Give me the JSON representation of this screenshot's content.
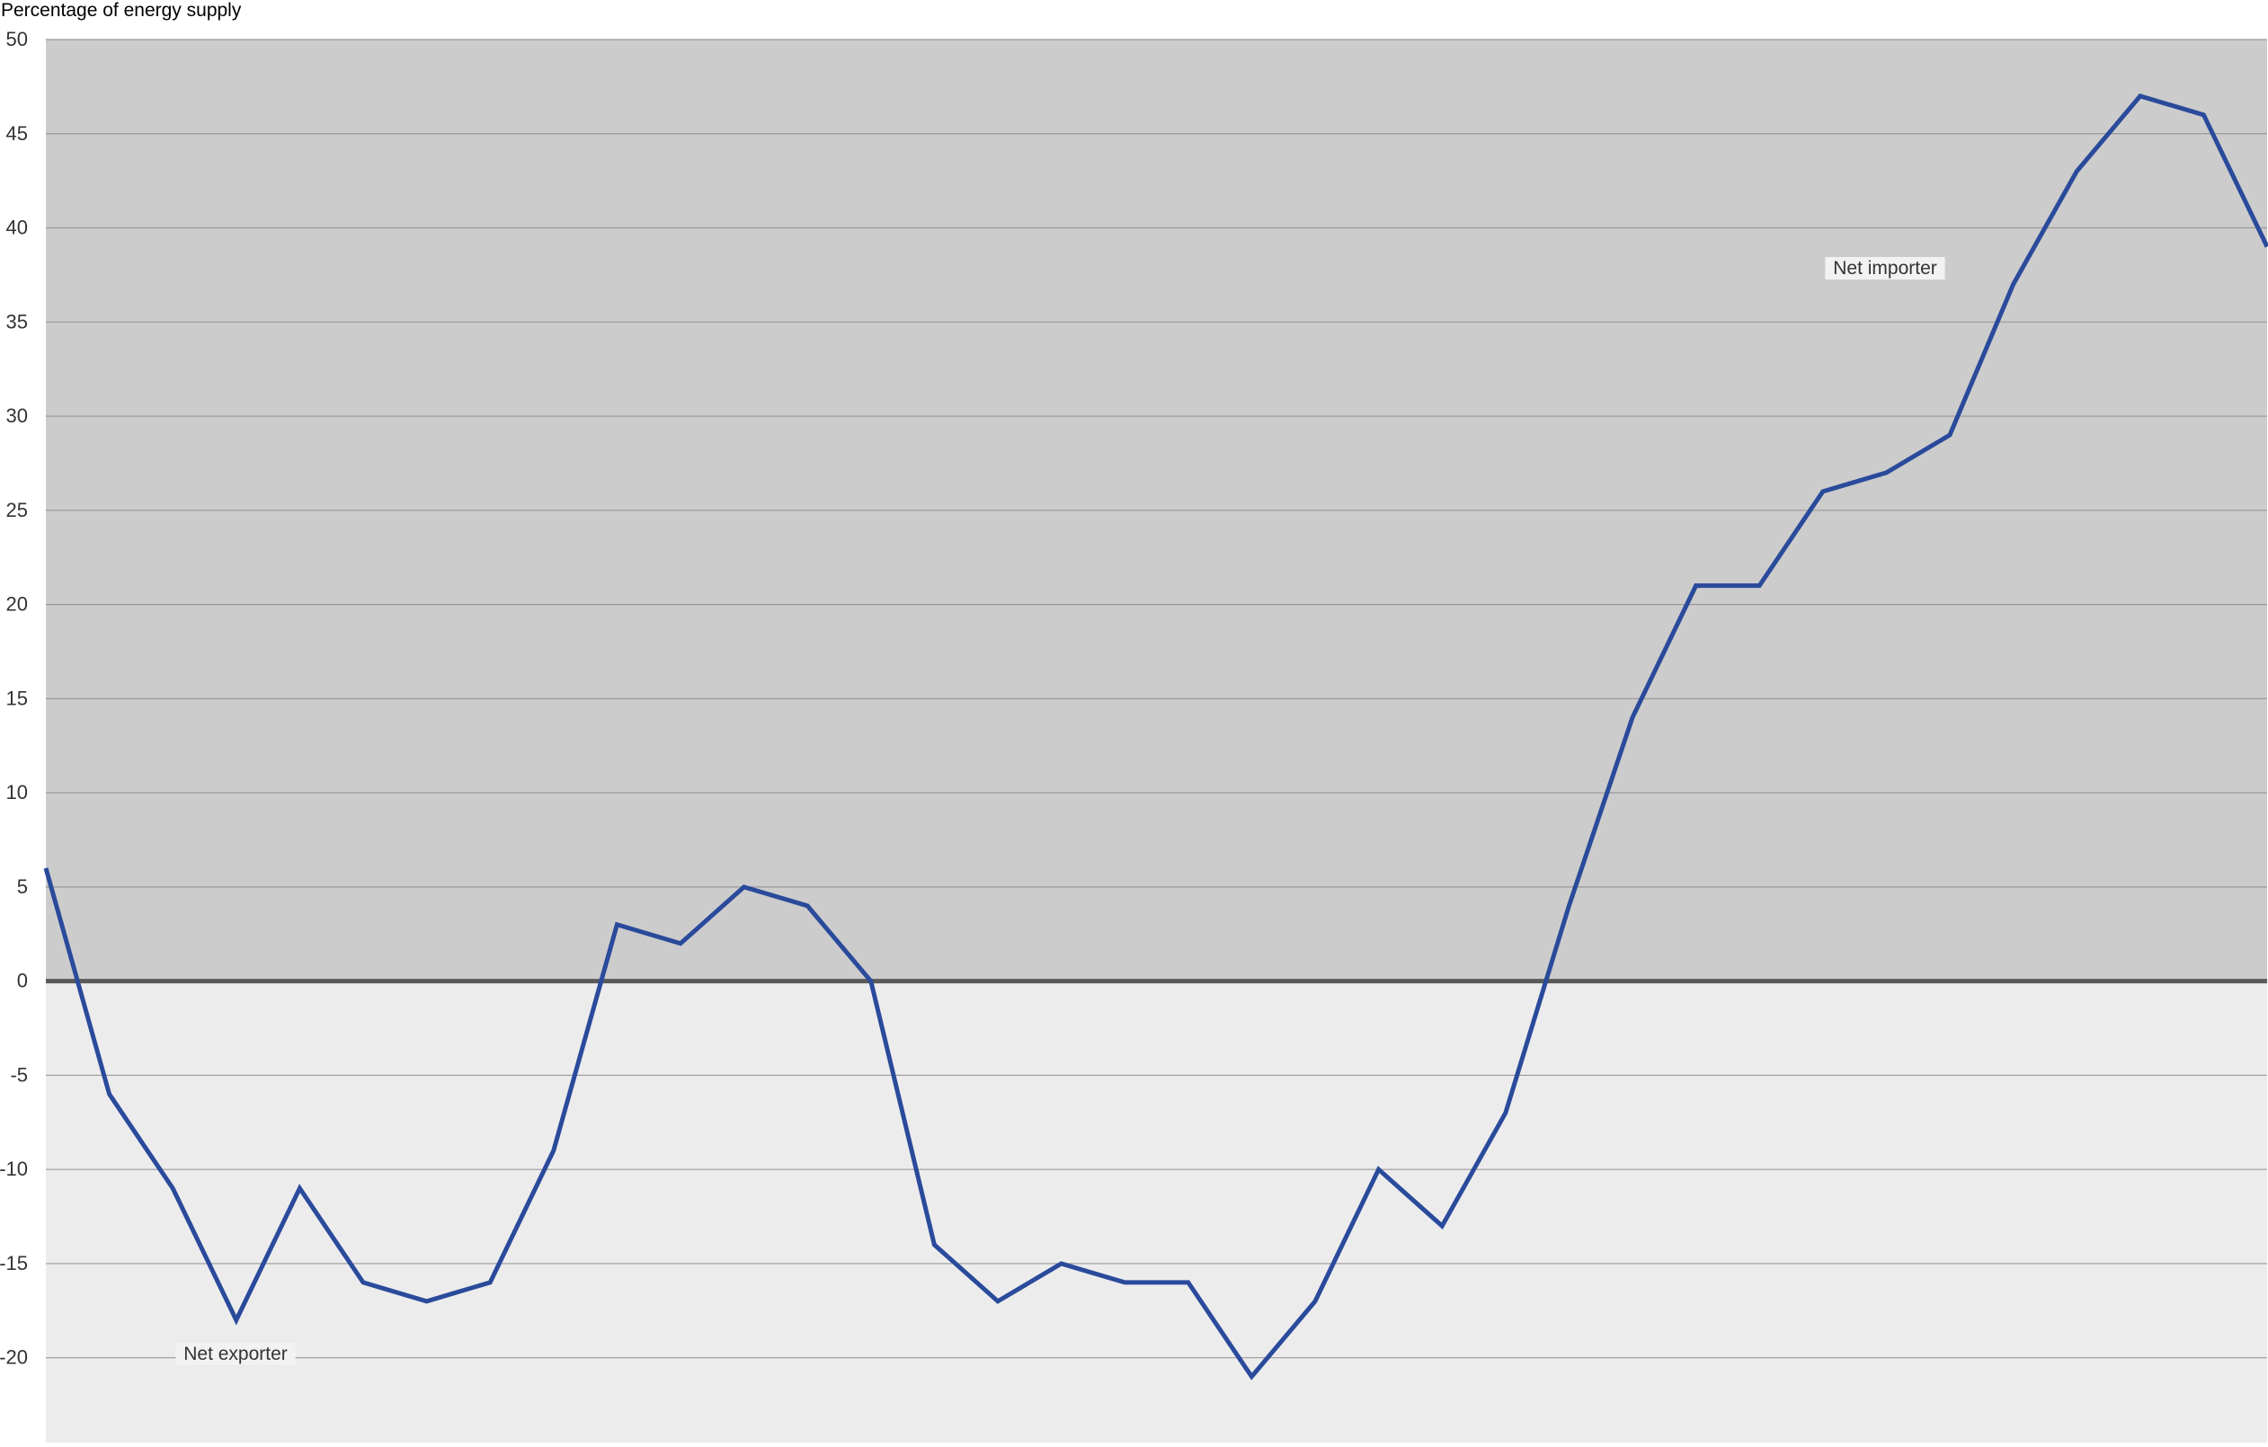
{
  "chart_data": {
    "type": "line",
    "title": "",
    "ylabel": "Percentage of energy supply",
    "xlabel": "",
    "ylim": [
      -24.5,
      50
    ],
    "yticks": [
      50,
      45,
      40,
      35,
      30,
      25,
      20,
      15,
      10,
      5,
      0,
      -5,
      -10,
      -15,
      -20
    ],
    "grid": true,
    "legend": "none",
    "regions": {
      "above_zero_label": "Net importer",
      "below_zero_label": "Net exporter"
    },
    "colors": {
      "line": "#2a4a9b",
      "upper_region": "#cccccc",
      "lower_region": "#ececed",
      "gridline": "#999999",
      "zero_line": "#5a5a5a",
      "label_background": "#f2f2f2"
    },
    "series": [
      {
        "values": [
          6,
          -6,
          -11,
          -18,
          -11,
          -16,
          -17,
          -16,
          -9,
          3,
          2,
          5,
          4,
          0,
          -14,
          -17,
          -15,
          -16,
          -16,
          -21,
          -17,
          -10,
          -13,
          -7,
          4,
          14,
          21,
          21,
          26,
          27,
          29,
          37,
          43,
          47,
          46,
          39
        ]
      }
    ]
  }
}
